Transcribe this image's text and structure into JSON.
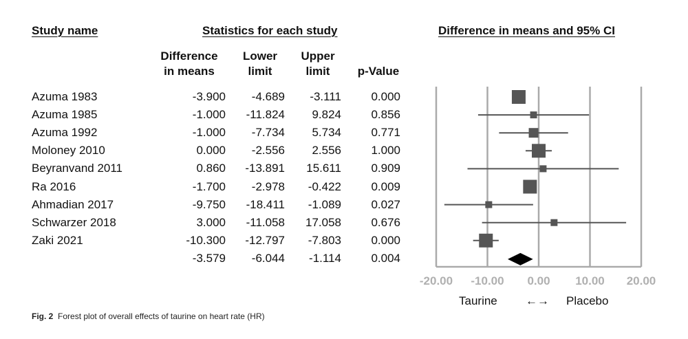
{
  "headers": {
    "study": "Study name",
    "stats": "Statistics for each study",
    "ci": "Difference in means and 95% CI"
  },
  "columns": {
    "diff": [
      "Difference",
      "in means"
    ],
    "lower": [
      "Lower",
      "limit"
    ],
    "upper": [
      "Upper",
      "limit"
    ],
    "p": "p-Value"
  },
  "rows": [
    {
      "study": "Azuma 1983",
      "diff": "-3.900",
      "lower": "-4.689",
      "upper": "-3.111",
      "p": "0.000"
    },
    {
      "study": "Azuma 1985",
      "diff": "-1.000",
      "lower": "-11.824",
      "upper": "9.824",
      "p": "0.856"
    },
    {
      "study": "Azuma 1992",
      "diff": "-1.000",
      "lower": "-7.734",
      "upper": "5.734",
      "p": "0.771"
    },
    {
      "study": "Moloney 2010",
      "diff": "0.000",
      "lower": "-2.556",
      "upper": "2.556",
      "p": "1.000"
    },
    {
      "study": "Beyranvand  2011",
      "diff": "0.860",
      "lower": "-13.891",
      "upper": "15.611",
      "p": "0.909"
    },
    {
      "study": "Ra 2016",
      "diff": "-1.700",
      "lower": "-2.978",
      "upper": "-0.422",
      "p": "0.009"
    },
    {
      "study": "Ahmadian 2017",
      "diff": "-9.750",
      "lower": "-18.411",
      "upper": "-1.089",
      "p": "0.027"
    },
    {
      "study": "Schwarzer 2018",
      "diff": "3.000",
      "lower": "-11.058",
      "upper": "17.058",
      "p": "0.676"
    },
    {
      "study": "Zaki 2021",
      "diff": "-10.300",
      "lower": "-12.797",
      "upper": "-7.803",
      "p": "0.000"
    }
  ],
  "summary": {
    "study": "",
    "diff": "-3.579",
    "lower": "-6.044",
    "upper": "-1.114",
    "p": "0.004"
  },
  "axis_ticks": [
    "-20.00",
    "-10.00",
    "0.00",
    "10.00",
    "20.00"
  ],
  "direction": {
    "left": "Taurine",
    "arrow": "←→",
    "right": "Placebo"
  },
  "caption": {
    "label": "Fig. 2",
    "text": "Forest plot of overall effects of taurine on heart rate (HR)"
  },
  "colors": {
    "marker": "#555555",
    "grid": "#aaaaaa",
    "summary": "#000000",
    "tick_text": "#b0b0b0"
  },
  "chart_data": {
    "type": "forest",
    "x_range": [
      -20,
      20
    ],
    "x_ticks": [
      -20,
      -10,
      0,
      10,
      20
    ],
    "grid": true,
    "studies": [
      {
        "name": "Azuma 1983",
        "mean": -3.9,
        "lower": -4.689,
        "upper": -3.111,
        "weight": "large"
      },
      {
        "name": "Azuma 1985",
        "mean": -1.0,
        "lower": -11.824,
        "upper": 9.824,
        "weight": "small"
      },
      {
        "name": "Azuma 1992",
        "mean": -1.0,
        "lower": -7.734,
        "upper": 5.734,
        "weight": "medium"
      },
      {
        "name": "Moloney 2010",
        "mean": 0.0,
        "lower": -2.556,
        "upper": 2.556,
        "weight": "large"
      },
      {
        "name": "Beyranvand  2011",
        "mean": 0.86,
        "lower": -13.891,
        "upper": 15.611,
        "weight": "small"
      },
      {
        "name": "Ra 2016",
        "mean": -1.7,
        "lower": -2.978,
        "upper": -0.422,
        "weight": "large"
      },
      {
        "name": "Ahmadian 2017",
        "mean": -9.75,
        "lower": -18.411,
        "upper": -1.089,
        "weight": "small"
      },
      {
        "name": "Schwarzer 2018",
        "mean": 3.0,
        "lower": -11.058,
        "upper": 17.058,
        "weight": "small"
      },
      {
        "name": "Zaki 2021",
        "mean": -10.3,
        "lower": -12.797,
        "upper": -7.803,
        "weight": "large"
      }
    ],
    "summary": {
      "mean": -3.579,
      "lower": -6.044,
      "upper": -1.114
    }
  }
}
